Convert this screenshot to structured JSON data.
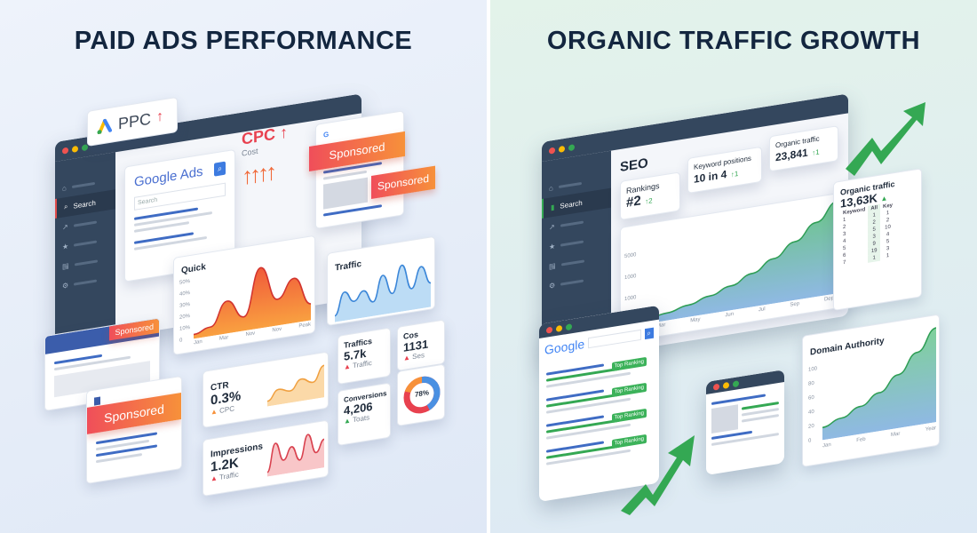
{
  "left": {
    "title": "PAID ADS PERFORMANCE",
    "ppc_badge": "PPC",
    "sidebar_search": "Search",
    "google_ads": {
      "logo": "Google Ads",
      "search_placeholder": "Search"
    },
    "cpc": {
      "title": "CPC",
      "sub": "Cost"
    },
    "sponsored": "Sponsored",
    "quick_chart": {
      "title": "Quick",
      "yticks": [
        "50%",
        "40%",
        "30%",
        "20%",
        "10%",
        "0"
      ],
      "xticks": [
        "Jan",
        "Mar",
        "Nov",
        "Nov",
        "Peak"
      ],
      "values": [
        2,
        6,
        25,
        10,
        48,
        20,
        35,
        12
      ]
    },
    "traffic_chart": {
      "title": "Traffic",
      "values": [
        5,
        30,
        18,
        28,
        14,
        42,
        20,
        50,
        22,
        45,
        25
      ]
    },
    "ctr": {
      "label": "CTR",
      "value": "0.3%",
      "sub": "CPC",
      "values": [
        2,
        8,
        6,
        12,
        9,
        18
      ]
    },
    "impressions": {
      "label": "Impressions",
      "value": "1.2K",
      "sub": "Traffic",
      "values": [
        2,
        25,
        10,
        20,
        8,
        28,
        12,
        22
      ]
    },
    "traffics": {
      "label": "Traffics",
      "value": "5.7k",
      "sub": "Traffic"
    },
    "cos": {
      "label": "Cos",
      "value": "1131",
      "sub": "Ses"
    },
    "conversions": {
      "label": "Conversions",
      "value": "4,206",
      "sub": "Toats"
    },
    "donut": {
      "value": "78%",
      "percent": 78
    },
    "colors": {
      "orange": "#f7913a",
      "red": "#e8414f",
      "blue": "#4a90e2"
    }
  },
  "right": {
    "title": "ORGANIC TRAFFIC GROWTH",
    "sidebar_search": "Search",
    "seo": "SEO",
    "rankings": {
      "label": "Rankings",
      "value": "#2",
      "delta": "↑2"
    },
    "keyword_positions": {
      "label": "Keyword positions",
      "value": "10 in 4",
      "delta": "↑1"
    },
    "organic_traffic": {
      "label": "Organic traffic",
      "value": "23,841",
      "delta": "↑1"
    },
    "main_chart": {
      "yticks": [
        "5000",
        "1000",
        "1000"
      ],
      "xticks": [
        "Mar",
        "May",
        "Jun",
        "Jul",
        "Sep",
        "Dep"
      ],
      "values": [
        2,
        5,
        9,
        14,
        20,
        28,
        38,
        50,
        64,
        80
      ]
    },
    "organic_table": {
      "label": "Organic traffic",
      "value": "13,63K",
      "headers": [
        "Keyword",
        "All",
        "Key"
      ],
      "rows": [
        [
          "1",
          "1",
          "1"
        ],
        [
          "2",
          "2",
          "2"
        ],
        [
          "3",
          "5",
          "10"
        ],
        [
          "4",
          "3",
          "4"
        ],
        [
          "5",
          "9",
          "5"
        ],
        [
          "6",
          "19",
          "3"
        ],
        [
          "7",
          "1",
          "1"
        ]
      ]
    },
    "google": {
      "logo": "Google",
      "tag": "Top Ranking"
    },
    "domain_authority": {
      "label": "Domain Authority",
      "yticks": [
        "100",
        "80",
        "60",
        "40",
        "20",
        "0"
      ],
      "xticks": [
        "Jan",
        "Feb",
        "Mar",
        "Year"
      ],
      "values": [
        10,
        16,
        24,
        34,
        48,
        66,
        86
      ]
    },
    "colors": {
      "green": "#34a853",
      "blue": "#7fb2de"
    }
  }
}
